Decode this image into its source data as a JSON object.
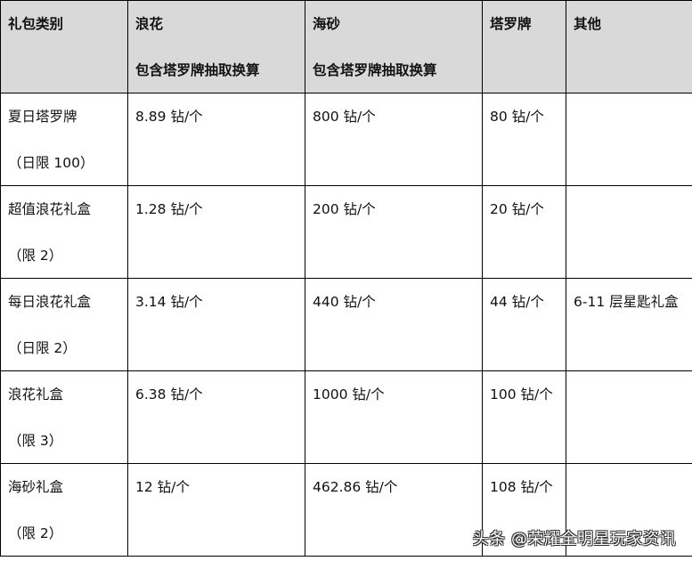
{
  "header": {
    "col0": "礼包类别",
    "col1": {
      "line1": "浪花",
      "line2": "包含塔罗牌抽取换算"
    },
    "col2": {
      "line1": "海砂",
      "line2": "包含塔罗牌抽取换算"
    },
    "col3": "塔罗牌",
    "col4": "其他"
  },
  "rows": [
    {
      "name": "夏日塔罗牌",
      "limit": "（日限 100）",
      "langhua": "8.89 钻/个",
      "haisha": "800 钻/个",
      "taluo": "80 钻/个",
      "other": ""
    },
    {
      "name": "超值浪花礼盒",
      "limit": "（限 2）",
      "langhua": "1.28 钻/个",
      "haisha": "200 钻/个",
      "taluo": "20 钻/个",
      "other": ""
    },
    {
      "name": "每日浪花礼盒",
      "limit": "（日限 2）",
      "langhua": "3.14 钻/个",
      "haisha": "440 钻/个",
      "taluo": "44 钻/个",
      "other": "6-11 层星匙礼盒"
    },
    {
      "name": "浪花礼盒",
      "limit": "（限 3）",
      "langhua": "6.38 钻/个",
      "haisha": "1000 钻/个",
      "taluo": "100 钻/个",
      "other": ""
    },
    {
      "name": "海砂礼盒",
      "limit": "（限 2）",
      "langhua": "12 钻/个",
      "haisha": "462.86 钻/个",
      "taluo": "108 钻/个",
      "other": ""
    }
  ],
  "watermark": "头条 @荣耀全明星玩家资讯",
  "colors": {
    "header_bg": "#d9d9d9",
    "border": "#000000"
  }
}
